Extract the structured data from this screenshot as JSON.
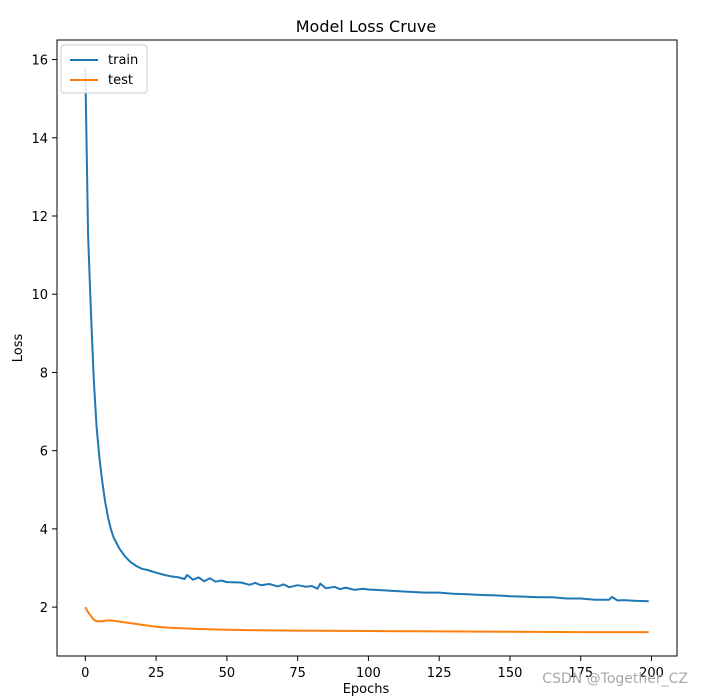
{
  "chart_data": {
    "type": "line",
    "title": "Model Loss Cruve",
    "xlabel": "Epochs",
    "ylabel": "Loss",
    "xlim": [
      -10,
      209
    ],
    "ylim": [
      0.75,
      16.5
    ],
    "xticks": [
      0,
      25,
      50,
      75,
      100,
      125,
      150,
      175,
      200
    ],
    "yticks": [
      2,
      4,
      6,
      8,
      10,
      12,
      14,
      16
    ],
    "grid": false,
    "legend_position": "top-left",
    "series": [
      {
        "name": "train",
        "color": "#1f77b4",
        "x": [
          0,
          1,
          2,
          3,
          4,
          5,
          6,
          7,
          8,
          9,
          10,
          12,
          14,
          16,
          18,
          20,
          22,
          25,
          28,
          30,
          33,
          35,
          36,
          38,
          40,
          42,
          44,
          46,
          48,
          50,
          55,
          58,
          60,
          62,
          65,
          68,
          70,
          72,
          75,
          78,
          80,
          82,
          83,
          85,
          88,
          90,
          92,
          95,
          98,
          100,
          105,
          110,
          115,
          120,
          125,
          130,
          135,
          140,
          145,
          150,
          155,
          160,
          165,
          170,
          175,
          180,
          185,
          186,
          188,
          190,
          195,
          199
        ],
        "y": [
          15.8,
          11.5,
          9.5,
          7.8,
          6.6,
          5.8,
          5.2,
          4.7,
          4.3,
          4.0,
          3.78,
          3.5,
          3.3,
          3.15,
          3.05,
          2.98,
          2.95,
          2.88,
          2.82,
          2.79,
          2.76,
          2.72,
          2.82,
          2.7,
          2.76,
          2.66,
          2.74,
          2.65,
          2.68,
          2.64,
          2.63,
          2.57,
          2.62,
          2.56,
          2.59,
          2.53,
          2.58,
          2.51,
          2.56,
          2.52,
          2.54,
          2.47,
          2.6,
          2.48,
          2.52,
          2.46,
          2.5,
          2.44,
          2.47,
          2.45,
          2.43,
          2.41,
          2.39,
          2.37,
          2.37,
          2.34,
          2.33,
          2.31,
          2.3,
          2.28,
          2.27,
          2.25,
          2.25,
          2.22,
          2.22,
          2.19,
          2.19,
          2.26,
          2.17,
          2.18,
          2.16,
          2.15
        ]
      },
      {
        "name": "test",
        "color": "#ff7f0e",
        "x": [
          0,
          1,
          2,
          3,
          4,
          5,
          6,
          7,
          8,
          9,
          10,
          12,
          15,
          20,
          25,
          30,
          40,
          50,
          60,
          75,
          100,
          125,
          150,
          175,
          199
        ],
        "y": [
          2.0,
          1.87,
          1.77,
          1.68,
          1.64,
          1.64,
          1.64,
          1.65,
          1.66,
          1.66,
          1.65,
          1.63,
          1.6,
          1.55,
          1.5,
          1.47,
          1.44,
          1.42,
          1.41,
          1.4,
          1.39,
          1.38,
          1.37,
          1.36,
          1.36
        ]
      }
    ]
  },
  "watermark": "CSDN @Together_CZ"
}
